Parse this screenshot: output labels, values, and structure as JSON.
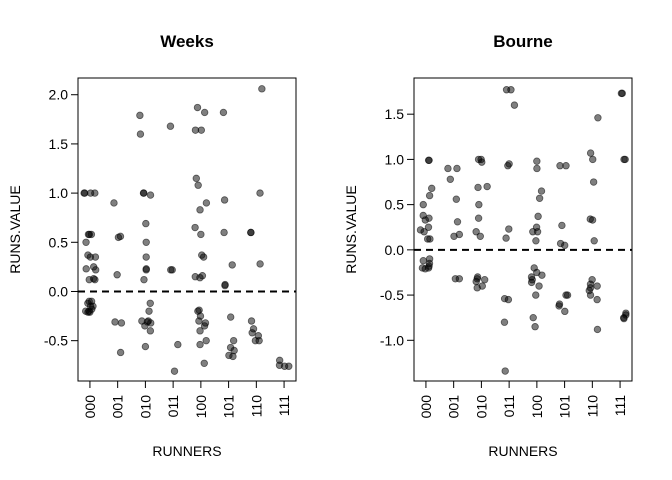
{
  "chart_data": [
    {
      "type": "strip",
      "title": "Weeks",
      "x_label": "RUNNERS",
      "y_label": "RUNS.VALUE",
      "categories": [
        "000",
        "001",
        "010",
        "011",
        "100",
        "101",
        "110",
        "111"
      ],
      "values": [
        [
          1.0,
          1.0,
          1.0,
          1.0,
          0.58,
          0.58,
          0.58,
          0.5,
          0.37,
          0.35,
          0.35,
          0.25,
          0.23,
          0.22,
          0.13,
          0.12,
          0.12,
          -0.1,
          -0.1,
          -0.12,
          -0.15,
          -0.15,
          -0.18,
          -0.2,
          -0.2,
          -0.21,
          -0.21
        ],
        [
          0.9,
          0.56,
          0.55,
          0.17,
          -0.31,
          -0.32,
          -0.62
        ],
        [
          1.79,
          1.6,
          1.0,
          1.0,
          0.98,
          0.69,
          0.5,
          0.35,
          0.23,
          0.22,
          0.12,
          -0.12,
          -0.2,
          -0.3,
          -0.3,
          -0.31,
          -0.32,
          -0.35,
          -0.4,
          -0.56
        ],
        [
          1.68,
          0.22,
          0.22,
          -0.54,
          -0.81
        ],
        [
          1.87,
          1.82,
          1.64,
          1.64,
          1.15,
          1.08,
          0.9,
          0.83,
          0.65,
          0.58,
          0.37,
          0.35,
          0.16,
          0.15,
          0.14,
          -0.19,
          -0.2,
          -0.25,
          -0.3,
          -0.32,
          -0.35,
          -0.4,
          -0.5,
          -0.54,
          -0.73
        ],
        [
          1.82,
          0.93,
          0.6,
          0.27,
          0.07,
          0.06,
          -0.26,
          -0.5,
          -0.57,
          -0.6,
          -0.66,
          -0.65
        ],
        [
          2.06,
          1.0,
          0.6,
          0.6,
          0.28,
          -0.3,
          -0.38,
          -0.42,
          -0.45,
          -0.5,
          -0.5
        ],
        [
          -0.7,
          -0.75,
          -0.76,
          -0.76
        ]
      ],
      "color": "#000000",
      "reference_line": 0,
      "ylim": [
        -0.91,
        2.17
      ],
      "yticks": [
        -0.5,
        {
          "value": 0,
          "label": "0.0"
        },
        0.5,
        {
          "value": 1,
          "label": "1.0"
        },
        1.5,
        {
          "value": 2,
          "label": "2.0"
        }
      ]
    },
    {
      "type": "strip",
      "title": "Bourne",
      "x_label": "RUNNERS",
      "y_label": "RUNS.VALUE",
      "categories": [
        "000",
        "001",
        "010",
        "011",
        "100",
        "101",
        "110",
        "111"
      ],
      "values": [
        [
          0.99,
          0.99,
          0.68,
          0.6,
          0.5,
          0.38,
          0.35,
          0.33,
          0.25,
          0.22,
          0.2,
          0.12,
          0.12,
          -0.1,
          -0.12,
          -0.15,
          -0.18,
          -0.2,
          -0.2,
          -0.21
        ],
        [
          0.9,
          0.9,
          0.78,
          0.56,
          0.31,
          0.17,
          0.15,
          -0.32,
          -0.32
        ],
        [
          1.0,
          1.0,
          0.97,
          0.7,
          0.69,
          0.5,
          0.35,
          0.2,
          0.15,
          -0.3,
          -0.32,
          -0.33,
          -0.35,
          -0.4,
          -0.42
        ],
        [
          1.77,
          1.77,
          1.6,
          0.95,
          0.93,
          0.23,
          0.13,
          -0.54,
          -0.55,
          -0.8,
          -1.34
        ],
        [
          0.98,
          0.9,
          0.65,
          0.57,
          0.37,
          0.25,
          0.2,
          0.2,
          0.1,
          -0.2,
          -0.25,
          -0.28,
          -0.3,
          -0.33,
          -0.36,
          -0.4,
          -0.5,
          -0.75,
          -0.85
        ],
        [
          0.93,
          0.93,
          0.27,
          0.07,
          0.05,
          -0.5,
          -0.5,
          -0.6,
          -0.62,
          -0.68
        ],
        [
          1.46,
          1.07,
          1.0,
          0.75,
          0.34,
          0.33,
          0.1,
          -0.33,
          -0.38,
          -0.4,
          -0.42,
          -0.45,
          -0.5,
          -0.55,
          -0.88
        ],
        [
          1.73,
          1.73,
          1.0,
          1.0,
          -0.7,
          -0.72,
          -0.75,
          -0.76
        ]
      ],
      "color": "#000000",
      "reference_line": 0,
      "ylim": [
        -1.45,
        1.9
      ],
      "yticks": [
        {
          "value": -1,
          "label": "-1.0"
        },
        -0.5,
        {
          "value": 0,
          "label": "0.0"
        },
        0.5,
        {
          "value": 1,
          "label": "1.0"
        },
        1.5
      ]
    }
  ]
}
